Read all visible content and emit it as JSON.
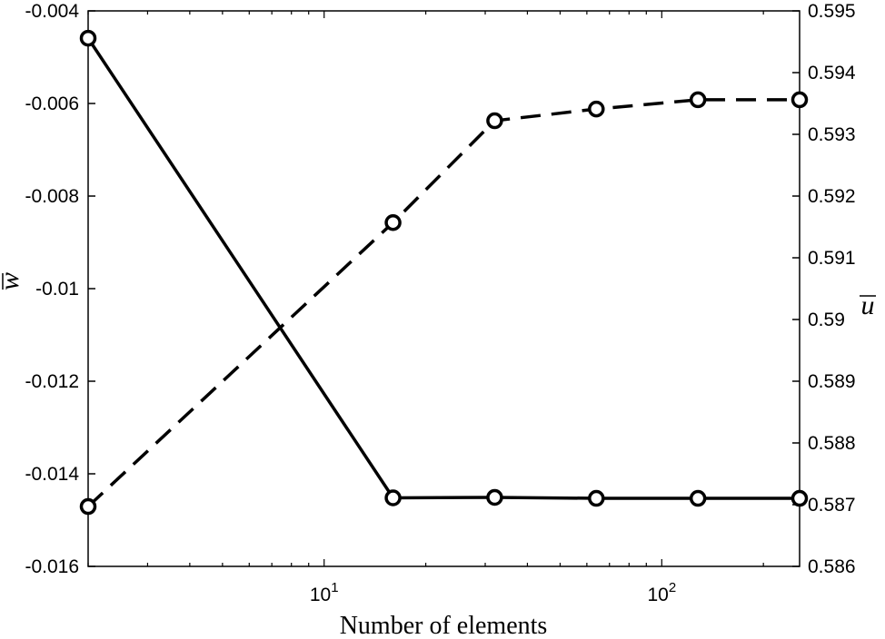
{
  "chart_data": {
    "type": "line",
    "xlabel": "Number of elements",
    "xscale": "log",
    "xlim": [
      2,
      256
    ],
    "x_ticks": [
      {
        "value": 10,
        "base": "10",
        "exp": "1"
      },
      {
        "value": 100,
        "base": "10",
        "exp": "2"
      }
    ],
    "left_axis": {
      "label": "w",
      "label_overline": true,
      "ylim": [
        -0.016,
        -0.004
      ],
      "ticks": [
        -0.016,
        -0.014,
        -0.012,
        -0.01,
        -0.008,
        -0.006,
        -0.004
      ],
      "tick_labels": [
        "-0.016",
        "-0.014",
        "-0.012",
        "-0.01",
        "-0.008",
        "-0.006",
        "-0.004"
      ]
    },
    "right_axis": {
      "label": "u",
      "label_overline": true,
      "ylim": [
        0.586,
        0.595
      ],
      "ticks": [
        0.586,
        0.587,
        0.588,
        0.589,
        0.59,
        0.591,
        0.592,
        0.593,
        0.594,
        0.595
      ],
      "tick_labels": [
        "0.586",
        "0.587",
        "0.588",
        "0.589",
        "0.59",
        "0.591",
        "0.592",
        "0.593",
        "0.594",
        "0.595"
      ]
    },
    "grid": false,
    "legend": "none",
    "series": [
      {
        "axis": "left",
        "line_style": "solid",
        "marker": "circle",
        "color": "#000000",
        "x": [
          2,
          16,
          32,
          64,
          128,
          256
        ],
        "y": [
          -0.00459,
          -0.01452,
          -0.01451,
          -0.01453,
          -0.01453,
          -0.01453
        ]
      },
      {
        "axis": "right",
        "line_style": "dashed",
        "marker": "circle",
        "color": "#000000",
        "x": [
          2,
          16,
          32,
          64,
          128,
          256
        ],
        "y": [
          0.58697,
          0.59157,
          0.59322,
          0.59341,
          0.59356,
          0.59356
        ]
      }
    ]
  }
}
